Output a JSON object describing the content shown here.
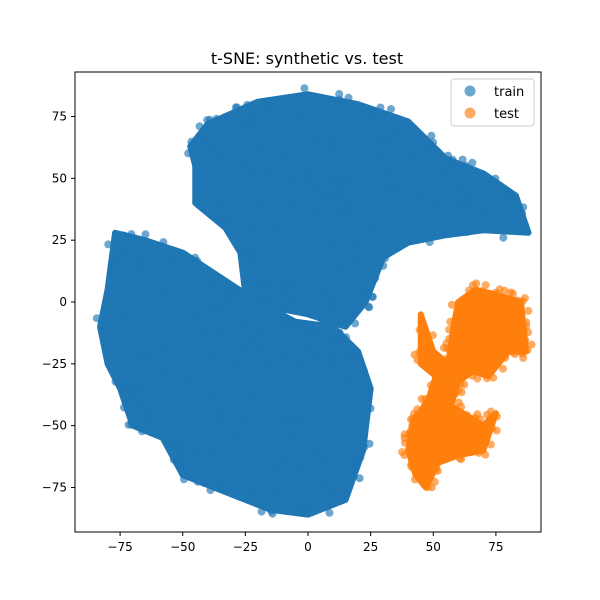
{
  "chart_data": {
    "type": "scatter",
    "title": "t-SNE: synthetic vs. test",
    "xlabel": "",
    "ylabel": "",
    "xlim": [
      -93,
      93
    ],
    "ylim": [
      -93,
      93
    ],
    "xticks": [
      -75,
      -50,
      -25,
      0,
      25,
      50,
      75
    ],
    "yticks": [
      75,
      50,
      25,
      0,
      -25,
      -50,
      -75
    ],
    "xtick_labels": [
      "−75",
      "−50",
      "−25",
      "0",
      "25",
      "50",
      "75"
    ],
    "ytick_labels": [
      "75",
      "50",
      "25",
      "0",
      "−25",
      "−50",
      "−75"
    ],
    "grid": false,
    "legend_position": "top-right",
    "series": [
      {
        "name": "train",
        "color": "#1f77b4",
        "clusters": [
          {
            "outline": [
              [
                -47,
                63
              ],
              [
                -40,
                72
              ],
              [
                -20,
                81
              ],
              [
                0,
                84
              ],
              [
                20,
                80
              ],
              [
                40,
                73
              ],
              [
                55,
                58
              ],
              [
                70,
                52
              ],
              [
                83,
                43
              ],
              [
                88,
                28
              ],
              [
                70,
                29
              ],
              [
                55,
                27
              ],
              [
                40,
                24
              ],
              [
                30,
                18
              ],
              [
                23,
                0
              ],
              [
                15,
                -10
              ],
              [
                0,
                -5
              ],
              [
                -15,
                -2
              ],
              [
                -25,
                3
              ],
              [
                -27,
                20
              ],
              [
                -33,
                30
              ],
              [
                -45,
                40
              ],
              [
                -45,
                55
              ]
            ]
          },
          {
            "outline": [
              [
                -83,
                -10
              ],
              [
                -80,
                5
              ],
              [
                -77,
                28
              ],
              [
                -65,
                25
              ],
              [
                -50,
                20
              ],
              [
                -35,
                10
              ],
              [
                -20,
                0
              ],
              [
                -5,
                -8
              ],
              [
                10,
                -10
              ],
              [
                20,
                -20
              ],
              [
                25,
                -35
              ],
              [
                22,
                -60
              ],
              [
                15,
                -80
              ],
              [
                0,
                -86
              ],
              [
                -15,
                -84
              ],
              [
                -30,
                -78
              ],
              [
                -50,
                -70
              ],
              [
                -58,
                -55
              ],
              [
                -70,
                -50
              ],
              [
                -75,
                -35
              ],
              [
                -80,
                -25
              ]
            ]
          }
        ]
      },
      {
        "name": "test",
        "color": "#ff7f0e",
        "clusters": [
          {
            "outline": [
              [
                45,
                -5
              ],
              [
                50,
                -20
              ],
              [
                56,
                -25
              ],
              [
                58,
                -10
              ],
              [
                60,
                0
              ],
              [
                67,
                5
              ],
              [
                75,
                3
              ],
              [
                85,
                0
              ],
              [
                87,
                -20
              ],
              [
                80,
                -20
              ],
              [
                72,
                -30
              ],
              [
                66,
                -28
              ],
              [
                60,
                -32
              ],
              [
                57,
                -42
              ],
              [
                70,
                -50
              ],
              [
                75,
                -45
              ],
              [
                70,
                -60
              ],
              [
                60,
                -62
              ],
              [
                52,
                -65
              ],
              [
                47,
                -75
              ],
              [
                43,
                -70
              ],
              [
                40,
                -60
              ],
              [
                42,
                -48
              ],
              [
                48,
                -40
              ],
              [
                51,
                -30
              ],
              [
                45,
                -25
              ]
            ]
          }
        ]
      }
    ]
  }
}
